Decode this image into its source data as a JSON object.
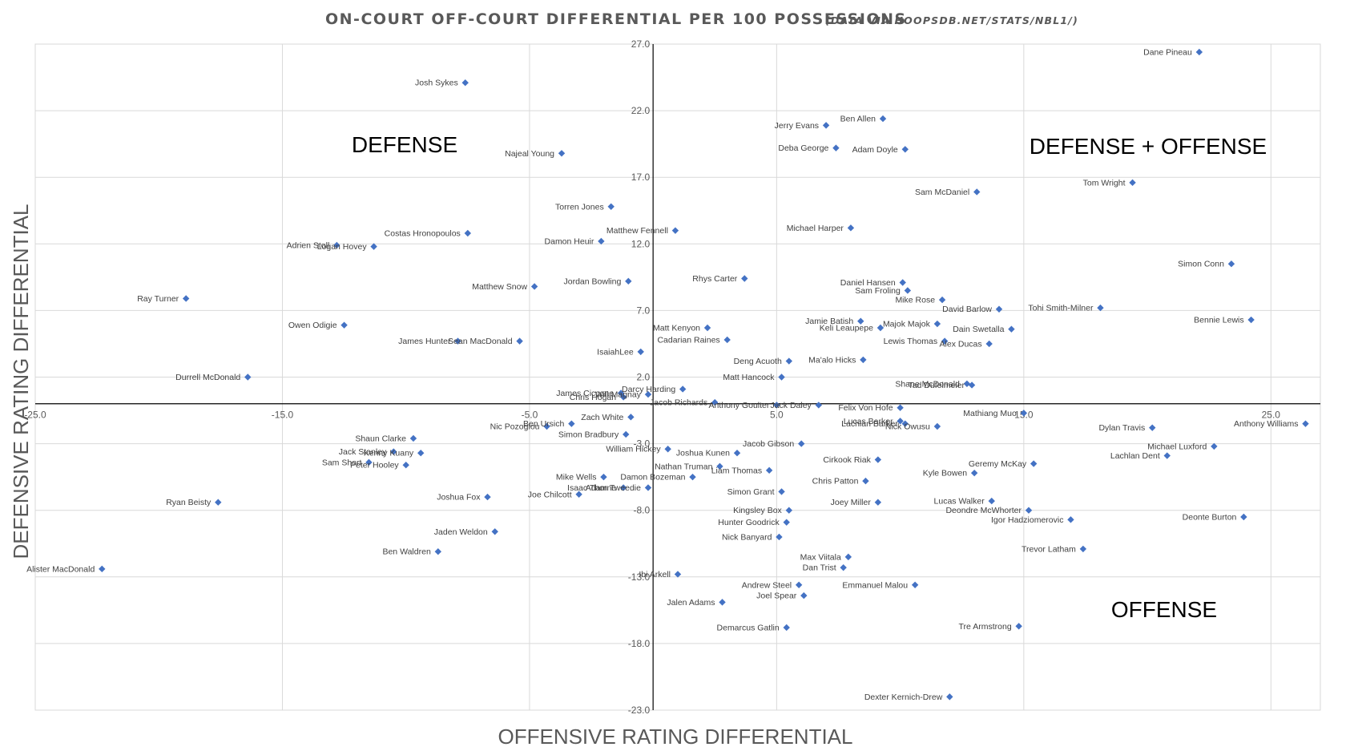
{
  "chart_data": {
    "type": "scatter",
    "title": "ON-COURT OFF-COURT DIFFERENTIAL PER 100 POSSESSIONS",
    "subtitle": "(DATA VIA HOOPSDB.NET/STATS/NBL1/)",
    "xlabel": "OFFENSIVE RATING DIFFERENTIAL",
    "ylabel": "DEFENSIVE RATING DIFFERENTIAL",
    "xlim": [
      -25,
      27
    ],
    "ylim": [
      -23,
      27
    ],
    "x_ticks": [
      "-25.0",
      "-15.0",
      "-5.0",
      "5.0",
      "15.0",
      "25.0"
    ],
    "x_tick_values": [
      -25,
      -15,
      -5,
      5,
      15,
      25
    ],
    "y_ticks": [
      "27.0",
      "22.0",
      "17.0",
      "12.0",
      "7.0",
      "2.0",
      "-3.0",
      "-8.0",
      "-13.0",
      "-18.0",
      "-23.0"
    ],
    "y_tick_values": [
      27,
      22,
      17,
      12,
      7,
      2,
      -3,
      -8,
      -13,
      -18,
      -23
    ],
    "marker_color": "#4472c4",
    "quadrant_labels": {
      "top_left": "DEFENSE",
      "top_right": "DEFENSE +  OFFENSE",
      "bottom_right": "OFFENSE"
    },
    "series": [
      {
        "name": "Players",
        "points": [
          {
            "label": "Dane Pineau",
            "x": 22.1,
            "y": 26.4
          },
          {
            "label": "Josh Sykes",
            "x": -7.6,
            "y": 24.1
          },
          {
            "label": "Ben Allen",
            "x": 9.3,
            "y": 21.4
          },
          {
            "label": "Jerry Evans",
            "x": 7.0,
            "y": 20.9
          },
          {
            "label": "Deba George",
            "x": 7.4,
            "y": 19.2
          },
          {
            "label": "Adam Doyle",
            "x": 10.2,
            "y": 19.1
          },
          {
            "label": "Najeal Young",
            "x": -3.7,
            "y": 18.8
          },
          {
            "label": "Tom Wright",
            "x": 19.4,
            "y": 16.6
          },
          {
            "label": "Sam McDaniel",
            "x": 13.1,
            "y": 15.9
          },
          {
            "label": "Torren Jones",
            "x": -1.7,
            "y": 14.8
          },
          {
            "label": "Michael Harper",
            "x": 8.0,
            "y": 13.2
          },
          {
            "label": "Matthew Fennell",
            "x": 0.9,
            "y": 13.0
          },
          {
            "label": "Costas Hronopoulos",
            "x": -7.5,
            "y": 12.8
          },
          {
            "label": "Damon Heuir",
            "x": -2.1,
            "y": 12.2
          },
          {
            "label": "Adrien Stoll",
            "x": -12.8,
            "y": 11.9
          },
          {
            "label": "Logan Hovey",
            "x": -11.3,
            "y": 11.8
          },
          {
            "label": "Simon Conn",
            "x": 23.4,
            "y": 10.5
          },
          {
            "label": "Rhys Carter",
            "x": 3.7,
            "y": 9.4
          },
          {
            "label": "Jordan Bowling",
            "x": -1.0,
            "y": 9.2
          },
          {
            "label": "Daniel Hansen",
            "x": 10.1,
            "y": 9.1
          },
          {
            "label": "Matthew Snow",
            "x": -4.8,
            "y": 8.8
          },
          {
            "label": "Sam Froling",
            "x": 10.3,
            "y": 8.5
          },
          {
            "label": "Ray Turner",
            "x": -18.9,
            "y": 7.9
          },
          {
            "label": "Mike Rose",
            "x": 11.7,
            "y": 7.8
          },
          {
            "label": "David Barlow",
            "x": 14.0,
            "y": 7.1
          },
          {
            "label": "Tohi Smith-Milner",
            "x": 18.1,
            "y": 7.2
          },
          {
            "label": "Bennie Lewis",
            "x": 24.2,
            "y": 6.3
          },
          {
            "label": "Jamie Batish",
            "x": 8.4,
            "y": 6.2
          },
          {
            "label": "Majok Majok",
            "x": 11.5,
            "y": 6.0
          },
          {
            "label": "Owen Odigie",
            "x": -12.5,
            "y": 5.9
          },
          {
            "label": "Matt Kenyon",
            "x": 2.2,
            "y": 5.7
          },
          {
            "label": "Keli Leaupepe",
            "x": 9.2,
            "y": 5.7
          },
          {
            "label": "Dain Swetalla",
            "x": 14.5,
            "y": 5.6
          },
          {
            "label": "Cadarian Raines",
            "x": 3.0,
            "y": 4.8
          },
          {
            "label": "James Hunter",
            "x": -7.9,
            "y": 4.7
          },
          {
            "label": "Sean MacDonald",
            "x": -5.4,
            "y": 4.7
          },
          {
            "label": "Lewis Thomas",
            "x": 11.8,
            "y": 4.7
          },
          {
            "label": "Alex Ducas",
            "x": 13.6,
            "y": 4.5
          },
          {
            "label": "IsaiahLee",
            "x": -0.5,
            "y": 3.9
          },
          {
            "label": "Deng Acuoth",
            "x": 5.5,
            "y": 3.2
          },
          {
            "label": "Ma'alo Hicks",
            "x": 8.5,
            "y": 3.3
          },
          {
            "label": "Durrell McDonald",
            "x": -16.4,
            "y": 2.0
          },
          {
            "label": "Matt Hancock",
            "x": 5.2,
            "y": 2.0
          },
          {
            "label": "Shane McDonald",
            "x": 12.7,
            "y": 1.5
          },
          {
            "label": "Tad Dufelmeier",
            "x": 12.9,
            "y": 1.4
          },
          {
            "label": "Darcy Harding",
            "x": 1.2,
            "y": 1.1
          },
          {
            "label": "James Ciccone",
            "x": -1.3,
            "y": 0.8
          },
          {
            "label": "Will Magnay",
            "x": -0.2,
            "y": 0.7
          },
          {
            "label": "Chris Hogan",
            "x": -1.2,
            "y": 0.5
          },
          {
            "label": "Jacob Richards",
            "x": 2.5,
            "y": 0.1
          },
          {
            "label": "Anthony Goulter",
            "x": 5.0,
            "y": -0.1
          },
          {
            "label": "Jack Daley",
            "x": 6.7,
            "y": -0.1
          },
          {
            "label": "Felix Von Hofe",
            "x": 10.0,
            "y": -0.3
          },
          {
            "label": "Mathiang Muo",
            "x": 15.0,
            "y": -0.7
          },
          {
            "label": "Zach White",
            "x": -0.9,
            "y": -1.0
          },
          {
            "label": "Lucas Barker",
            "x": 10.0,
            "y": -1.3
          },
          {
            "label": "Lachlan Barker",
            "x": 10.2,
            "y": -1.5
          },
          {
            "label": "Nick Owusu",
            "x": 11.5,
            "y": -1.7
          },
          {
            "label": "Ben Ursich",
            "x": -3.3,
            "y": -1.5
          },
          {
            "label": "Nic Pozoglou",
            "x": -4.3,
            "y": -1.7
          },
          {
            "label": "Dylan Travis",
            "x": 20.2,
            "y": -1.8
          },
          {
            "label": "Anthony Williams",
            "x": 26.4,
            "y": -1.5
          },
          {
            "label": "Simon Bradbury",
            "x": -1.1,
            "y": -2.3
          },
          {
            "label": "Shaun Clarke",
            "x": -9.7,
            "y": -2.6
          },
          {
            "label": "Jacob Gibson",
            "x": 6.0,
            "y": -3.0
          },
          {
            "label": "William Hickey",
            "x": 0.6,
            "y": -3.4
          },
          {
            "label": "Michael Luxford",
            "x": 22.7,
            "y": -3.2
          },
          {
            "label": "Joshua Kunen",
            "x": 3.4,
            "y": -3.7
          },
          {
            "label": "Jack Stanley",
            "x": -10.5,
            "y": -3.6
          },
          {
            "label": "Kenny Kuany",
            "x": -9.4,
            "y": -3.7
          },
          {
            "label": "Lachlan Dent",
            "x": 20.8,
            "y": -3.9
          },
          {
            "label": "Sam Short",
            "x": -11.5,
            "y": -4.4
          },
          {
            "label": "Peter Hooley",
            "x": -10.0,
            "y": -4.6
          },
          {
            "label": "Cirkook Riak",
            "x": 9.1,
            "y": -4.2
          },
          {
            "label": "Geremy McKay",
            "x": 15.4,
            "y": -4.5
          },
          {
            "label": "Nathan Truman",
            "x": 2.7,
            "y": -4.7
          },
          {
            "label": "Liam Thomas",
            "x": 4.7,
            "y": -5.0
          },
          {
            "label": "Kyle Bowen",
            "x": 13.0,
            "y": -5.2
          },
          {
            "label": "Mike Wells",
            "x": -2.0,
            "y": -5.5
          },
          {
            "label": "Damon Bozeman",
            "x": 1.6,
            "y": -5.5
          },
          {
            "label": "Chris Patton",
            "x": 8.6,
            "y": -5.8
          },
          {
            "label": "Isaac Thorne",
            "x": -1.2,
            "y": -6.3
          },
          {
            "label": "Adam Tweedie",
            "x": -0.2,
            "y": -6.3
          },
          {
            "label": "Simon Grant",
            "x": 5.2,
            "y": -6.6
          },
          {
            "label": "Joe Chilcott",
            "x": -3.0,
            "y": -6.8
          },
          {
            "label": "Joshua Fox",
            "x": -6.7,
            "y": -7.0
          },
          {
            "label": "Ryan Beisty",
            "x": -17.6,
            "y": -7.4
          },
          {
            "label": "Joey Miller",
            "x": 9.1,
            "y": -7.4
          },
          {
            "label": "Lucas Walker",
            "x": 13.7,
            "y": -7.3
          },
          {
            "label": "Kingsley Box",
            "x": 5.5,
            "y": -8.0
          },
          {
            "label": "Deondre McWhorter",
            "x": 15.2,
            "y": -8.0
          },
          {
            "label": "Igor Hadziomerovic",
            "x": 16.9,
            "y": -8.7
          },
          {
            "label": "Deonte Burton",
            "x": 23.9,
            "y": -8.5
          },
          {
            "label": "Hunter Goodrick",
            "x": 5.4,
            "y": -8.9
          },
          {
            "label": "Jaden Weldon",
            "x": -6.4,
            "y": -9.6
          },
          {
            "label": "Nick Banyard",
            "x": 5.1,
            "y": -10.0
          },
          {
            "label": "Trevor Latham",
            "x": 17.4,
            "y": -10.9
          },
          {
            "label": "Ben Waldren",
            "x": -8.7,
            "y": -11.1
          },
          {
            "label": "Max Viitala",
            "x": 7.9,
            "y": -11.5
          },
          {
            "label": "Dan Trist",
            "x": 7.7,
            "y": -12.3
          },
          {
            "label": "Alister MacDonald",
            "x": -22.3,
            "y": -12.4
          },
          {
            "label": "Ibi Arkell",
            "x": 1.0,
            "y": -12.8
          },
          {
            "label": "Andrew Steel",
            "x": 5.9,
            "y": -13.6
          },
          {
            "label": "Emmanuel Malou",
            "x": 10.6,
            "y": -13.6
          },
          {
            "label": "Joel Spear",
            "x": 6.1,
            "y": -14.4
          },
          {
            "label": "Jalen Adams",
            "x": 2.8,
            "y": -14.9
          },
          {
            "label": "Tre Armstrong",
            "x": 14.8,
            "y": -16.7
          },
          {
            "label": "Demarcus Gatlin",
            "x": 5.4,
            "y": -16.8
          },
          {
            "label": "Dexter Kernich-Drew",
            "x": 12.0,
            "y": -22.0
          }
        ]
      }
    ]
  }
}
